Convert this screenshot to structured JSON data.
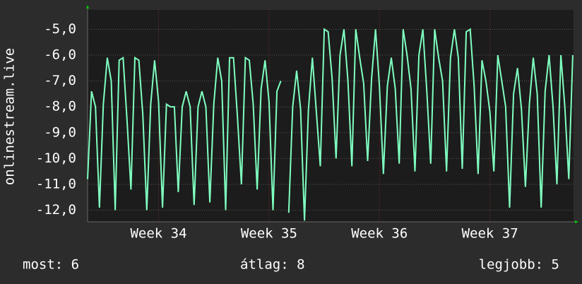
{
  "chart_data": {
    "type": "line",
    "y_label": "onlinestream.live",
    "x": [
      0,
      0.25,
      0.5,
      0.75,
      1,
      1.25,
      1.5,
      1.75,
      2,
      2.25,
      2.5,
      2.75,
      3,
      3.25,
      3.5,
      3.75,
      4,
      4.25,
      4.5,
      4.75,
      5,
      5.25,
      5.5,
      5.75,
      6,
      6.25,
      6.5,
      6.75,
      7,
      7.25,
      7.5,
      7.75,
      8,
      8.25,
      8.5,
      8.75,
      9,
      9.25,
      9.5,
      9.75,
      10,
      10.25,
      10.5,
      10.75,
      11,
      11.25,
      11.5,
      11.75,
      12,
      12.25,
      12.5,
      12.75,
      13,
      13.25,
      13.5,
      13.75,
      14,
      14.25,
      14.5,
      14.75,
      15,
      15.25,
      15.5,
      15.75,
      16,
      16.25,
      16.5,
      16.75,
      17,
      17.25,
      17.5,
      17.75,
      18,
      18.25,
      18.5,
      18.75,
      19,
      19.25,
      19.5,
      19.75,
      20,
      20.25,
      20.5,
      20.75,
      21,
      21.25,
      21.5,
      21.75,
      22,
      22.25,
      22.5,
      22.75,
      23,
      23.25,
      23.5,
      23.75,
      24,
      24.25,
      24.5,
      24.75,
      25,
      25.25,
      25.5,
      25.75,
      26,
      26.25,
      26.5,
      26.75,
      27,
      27.25,
      27.5,
      27.75,
      28,
      28.25,
      28.5,
      28.75,
      29,
      29.25,
      29.5,
      29.75,
      30,
      30.25,
      30.5,
      30.75
    ],
    "series": [
      {
        "name": "onlinestream.live",
        "color": "#7fffc0",
        "values": [
          -10.8,
          -7.4,
          -8.0,
          -11.9,
          -7.9,
          -6.1,
          -7.0,
          -12.0,
          -6.2,
          -6.1,
          -8.5,
          -11.2,
          -6.1,
          -6.2,
          -8.3,
          -12.0,
          -7.9,
          -6.2,
          -7.8,
          -11.9,
          -7.9,
          -8.0,
          -8.0,
          -11.3,
          -8.0,
          -7.4,
          -8.0,
          -11.8,
          -8.0,
          -7.4,
          -8.0,
          -11.7,
          -7.9,
          -6.1,
          -7.0,
          -12.0,
          -6.1,
          -6.1,
          -8.4,
          -11.0,
          -6.1,
          -6.2,
          -7.9,
          -11.2,
          -7.3,
          -6.2,
          -7.8,
          -12.0,
          -7.4,
          -7.0,
          null,
          -12.1,
          -8.0,
          -6.6,
          -8.1,
          -12.4,
          -8.1,
          -6.1,
          -8.2,
          -10.3,
          -5.0,
          -5.1,
          -6.9,
          -10.0,
          -6.0,
          -5.0,
          -7.0,
          -10.3,
          -5.0,
          -6.1,
          -7.1,
          -10.1,
          -6.9,
          -5.0,
          -7.2,
          -10.6,
          -7.2,
          -6.1,
          -7.3,
          -10.2,
          -5.0,
          -6.0,
          -7.3,
          -10.5,
          -6.0,
          -5.0,
          -7.4,
          -10.2,
          -5.0,
          -6.1,
          -7.0,
          -10.5,
          -6.1,
          -5.0,
          -6.1,
          -10.4,
          -5.1,
          -5.0,
          -7.2,
          -10.6,
          -6.2,
          -7.0,
          -8.2,
          -10.5,
          -6.0,
          -7.0,
          -8.0,
          -11.9,
          -7.5,
          -6.5,
          -8.1,
          -11.1,
          -7.9,
          -6.1,
          -7.5,
          -11.9,
          -7.4,
          -6.0,
          -8.0,
          -11.0,
          -6.0,
          -8.0,
          -10.8,
          -6.0
        ]
      }
    ],
    "xlim": [
      0,
      30.8
    ],
    "xticks": [
      {
        "value": 4.5,
        "label": "Week 34"
      },
      {
        "value": 11.5,
        "label": "Week 35"
      },
      {
        "value": 18.5,
        "label": "Week 36"
      },
      {
        "value": 25.5,
        "label": "Week 37"
      }
    ],
    "ylim": [
      -12.45,
      -4.25
    ],
    "yticks": [
      {
        "value": -5,
        "label": "-5,0"
      },
      {
        "value": -6,
        "label": "-6,0"
      },
      {
        "value": -7,
        "label": "-7,0"
      },
      {
        "value": -8,
        "label": "-8,0"
      },
      {
        "value": -9,
        "label": "-9,0"
      },
      {
        "value": -10,
        "label": "-10,0"
      },
      {
        "value": -11,
        "label": "-11,0"
      },
      {
        "value": -12,
        "label": "-12,0"
      }
    ],
    "grid": true,
    "footer": {
      "current": "most: 6",
      "average": "átlag: 8",
      "best": "legjobb: 5"
    }
  }
}
